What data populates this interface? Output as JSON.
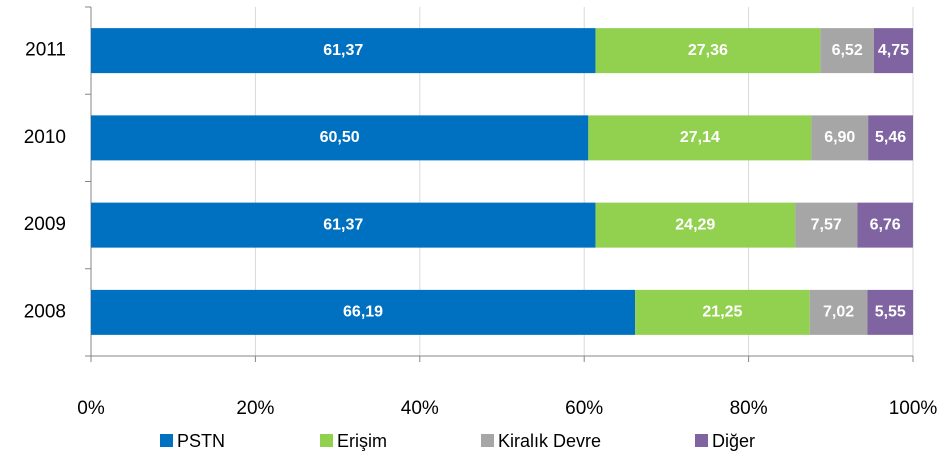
{
  "chart_data": {
    "type": "stacked_barh",
    "categories": [
      "2011",
      "2010",
      "2009",
      "2008"
    ],
    "series": [
      {
        "name": "PSTN",
        "color": "#0070c0",
        "values": [
          61.37,
          60.5,
          61.37,
          66.19
        ],
        "value_labels": [
          "61,37",
          "60,50",
          "61,37",
          "66,19"
        ]
      },
      {
        "name": "Erişim",
        "color": "#92d050",
        "values": [
          27.36,
          27.14,
          24.29,
          21.25
        ],
        "value_labels": [
          "27,36",
          "27,14",
          "24,29",
          "21,25"
        ]
      },
      {
        "name": "Kiralık Devre",
        "color": "#a6a6a6",
        "values": [
          6.52,
          6.9,
          7.57,
          7.02
        ],
        "value_labels": [
          "6,52",
          "6,90",
          "7,57",
          "7,02"
        ]
      },
      {
        "name": "Diğer",
        "color": "#8064a2",
        "values": [
          4.75,
          5.46,
          6.76,
          5.55
        ],
        "value_labels": [
          "4,75",
          "5,46",
          "6,76",
          "5,55"
        ]
      }
    ],
    "xlim": [
      0,
      100
    ],
    "xticks": [
      {
        "value": 0,
        "label": "0%"
      },
      {
        "value": 20,
        "label": "20%"
      },
      {
        "value": 40,
        "label": "40%"
      },
      {
        "value": 60,
        "label": "60%"
      },
      {
        "value": 80,
        "label": "80%"
      },
      {
        "value": 100,
        "label": "100%"
      }
    ],
    "grid": true,
    "legend": "bottom"
  }
}
